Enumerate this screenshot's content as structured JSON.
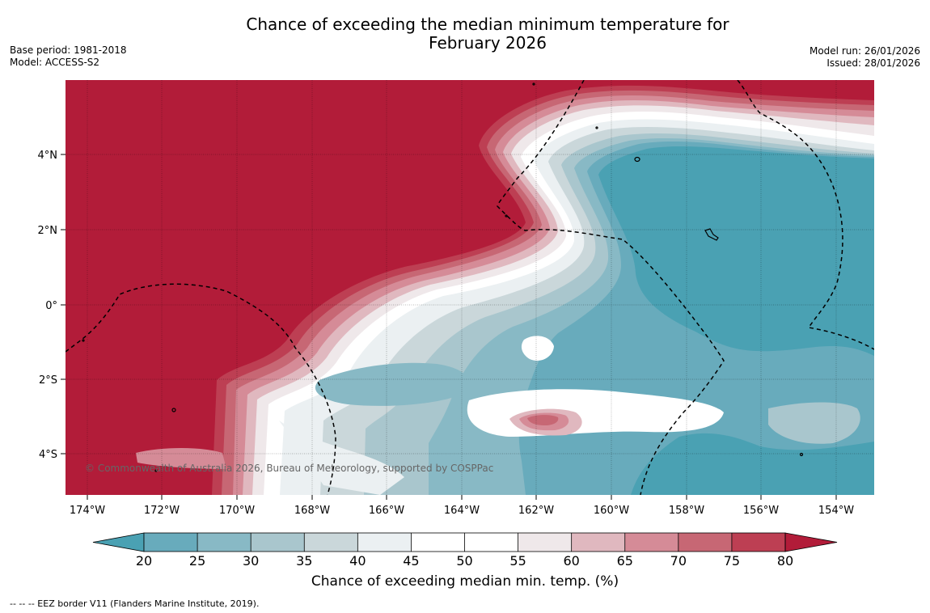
{
  "title": {
    "line1": "Chance of exceeding the median minimum temperature for",
    "line2": "February 2026"
  },
  "meta_left": {
    "base_period": "Base period: 1981-2018",
    "model": "Model: ACCESS-S2"
  },
  "meta_right": {
    "model_run": "Model run: 26/01/2026",
    "issued": "Issued: 28/01/2026"
  },
  "copyright": "© Commonwealth of Australia 2026, Bureau of Meteorology, supported by COSPPac",
  "map": {
    "lon_labels": [
      "174°W",
      "172°W",
      "170°W",
      "168°W",
      "166°W",
      "164°W",
      "162°W",
      "160°W",
      "158°W",
      "156°W",
      "154°W"
    ],
    "lat_labels": [
      "4°N",
      "2°N",
      "0°",
      "2°S",
      "4°S"
    ]
  },
  "colorbar": {
    "title": "Chance of exceeding median min. temp. (%)",
    "ticks": [
      "20",
      "25",
      "30",
      "35",
      "40",
      "45",
      "50",
      "55",
      "60",
      "65",
      "70",
      "75",
      "80"
    ],
    "colors": [
      "#4aa1b3",
      "#68abbc",
      "#88b9c5",
      "#a9c6cd",
      "#cad7da",
      "#ebf0f2",
      "#ffffff",
      "#ffffff",
      "#efe8ea",
      "#e0b8bf",
      "#d58b97",
      "#c76774",
      "#bd3f53",
      "#b21c39"
    ]
  },
  "footnote": "--  --  -- EEZ border V11 (Flanders Marine Institute, 2019)."
}
